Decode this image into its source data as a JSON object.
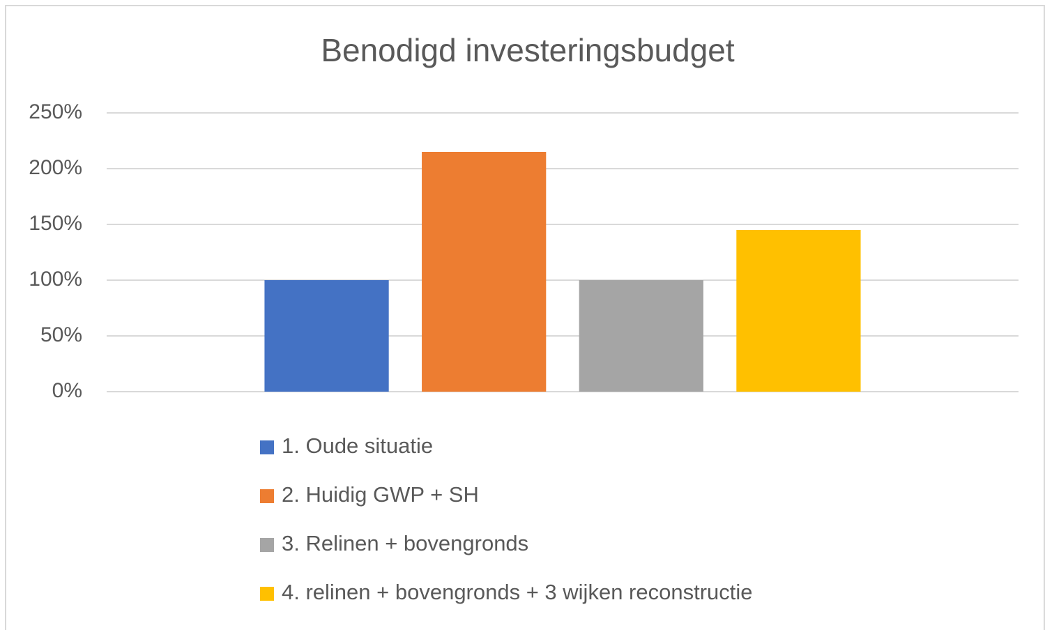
{
  "chart_data": {
    "type": "bar",
    "title": "Benodigd investeringsbudget",
    "categories": [
      null
    ],
    "series": [
      {
        "name": "1. Oude situatie",
        "color": "#4472c4",
        "values": [
          100
        ]
      },
      {
        "name": "2. Huidig GWP + SH",
        "color": "#ed7d31",
        "values": [
          215
        ]
      },
      {
        "name": "3. Relinen + bovengronds",
        "color": "#a5a5a5",
        "values": [
          100
        ]
      },
      {
        "name": "4. relinen + bovengronds + 3 wijken reconstructie",
        "color": "#ffc000",
        "values": [
          145
        ]
      }
    ],
    "ylim": [
      0,
      250
    ],
    "yticks": [
      {
        "value": 0,
        "label": "0%"
      },
      {
        "value": 50,
        "label": "50%"
      },
      {
        "value": 100,
        "label": "100%"
      },
      {
        "value": 150,
        "label": "150%"
      },
      {
        "value": 200,
        "label": "200%"
      },
      {
        "value": 250,
        "label": "250%"
      }
    ],
    "grid": true,
    "legend": "bottom"
  }
}
